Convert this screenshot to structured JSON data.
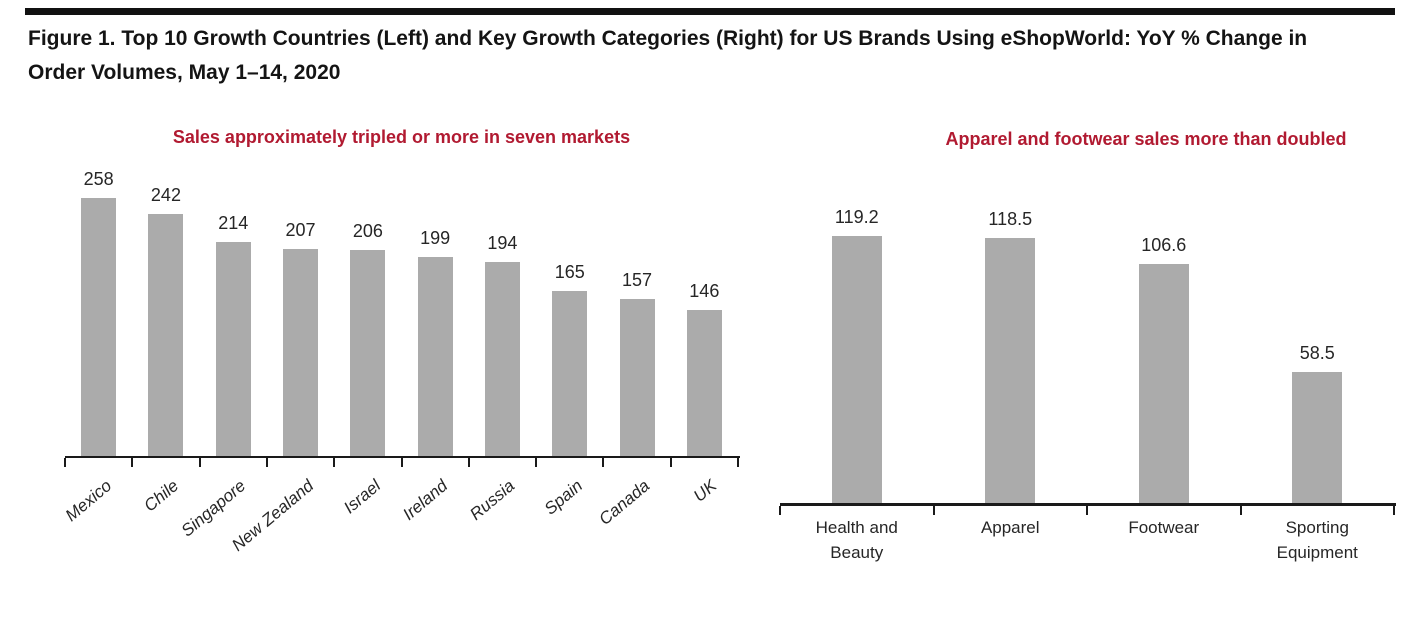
{
  "figure_title": {
    "line1": "Figure 1. Top 10 Growth Countries (Left) and Key Growth Categories (Right) for US Brands Using eShopWorld: YoY % Change in",
    "line2": "Order Volumes, May 1–14, 2020"
  },
  "colors": {
    "title_red": "#B11A31",
    "bar_gray": "#ABABAB",
    "axis_black": "#1A1A1A",
    "text_black": "#141414"
  },
  "chart_data": [
    {
      "type": "bar",
      "title": "Sales approximately tripled or more in seven markets",
      "title_color": "#B11A31",
      "bar_color": "#ABABAB",
      "categories": [
        "Mexico",
        "Chile",
        "Singapore",
        "New Zealand",
        "Israel",
        "Ireland",
        "Russia",
        "Spain",
        "Canada",
        "UK"
      ],
      "values": [
        258,
        242,
        214,
        207,
        206,
        199,
        194,
        165,
        157,
        146
      ],
      "data_labels": true,
      "xlabel": "",
      "ylabel": "",
      "ylim": [
        0,
        280
      ],
      "grid": false,
      "legend": null,
      "x_label_style": "rotated-italic"
    },
    {
      "type": "bar",
      "title": "Apparel and footwear sales more than doubled",
      "title_color": "#B11A31",
      "bar_color": "#ABABAB",
      "categories": [
        "Health and Beauty",
        "Apparel",
        "Footwear",
        "Sporting Equipment"
      ],
      "values": [
        119.2,
        118.5,
        106.6,
        58.5
      ],
      "data_labels": true,
      "xlabel": "",
      "ylabel": "",
      "ylim": [
        0,
        130
      ],
      "grid": false,
      "legend": null,
      "x_label_style": "horizontal"
    }
  ]
}
